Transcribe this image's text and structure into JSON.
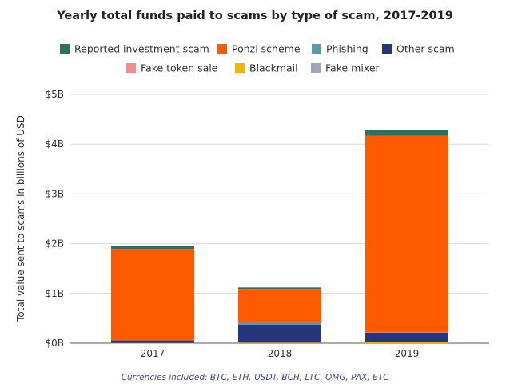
{
  "chart_data": {
    "type": "bar",
    "stacked": true,
    "title": "Yearly total funds paid to scams by type of scam, 2017-2019",
    "ylabel": "Total value sent to scams in billions of USD",
    "xlabel": "",
    "categories": [
      "2017",
      "2018",
      "2019"
    ],
    "ylim": [
      0,
      5
    ],
    "yticks": [
      {
        "value": 0,
        "label": "$0B"
      },
      {
        "value": 1,
        "label": "$1B"
      },
      {
        "value": 2,
        "label": "$2B"
      },
      {
        "value": 3,
        "label": "$3B"
      },
      {
        "value": 4,
        "label": "$4B"
      },
      {
        "value": 5,
        "label": "$5B"
      }
    ],
    "grid": true,
    "legend_position": "top",
    "series": [
      {
        "name": "Fake token sale",
        "color": "#f28b8b",
        "values": [
          0.0,
          0.0,
          0.0
        ]
      },
      {
        "name": "Blackmail",
        "color": "#f5b400",
        "values": [
          0.005,
          0.01,
          0.02
        ]
      },
      {
        "name": "Fake mixer",
        "color": "#a0a8b0",
        "values": [
          0.0,
          0.0,
          0.0
        ]
      },
      {
        "name": "Other scam",
        "color": "#26367a",
        "values": [
          0.05,
          0.36,
          0.19
        ]
      },
      {
        "name": "Phishing",
        "color": "#5b9aa6",
        "values": [
          0.01,
          0.05,
          0.01
        ]
      },
      {
        "name": "Ponzi scheme",
        "color": "#ff5a00",
        "values": [
          1.83,
          0.67,
          3.95
        ]
      },
      {
        "name": "Reported investment scam",
        "color": "#2e7060",
        "values": [
          0.05,
          0.03,
          0.12
        ]
      }
    ],
    "legend_rows": [
      [
        "Reported investment scam",
        "Ponzi scheme",
        "Phishing",
        "Other scam"
      ],
      [
        "Fake token sale",
        "Blackmail",
        "Fake mixer"
      ]
    ],
    "footnote": "Currencies included: BTC, ETH, USDT, BCH, LTC, OMG, PAX, ETC"
  }
}
